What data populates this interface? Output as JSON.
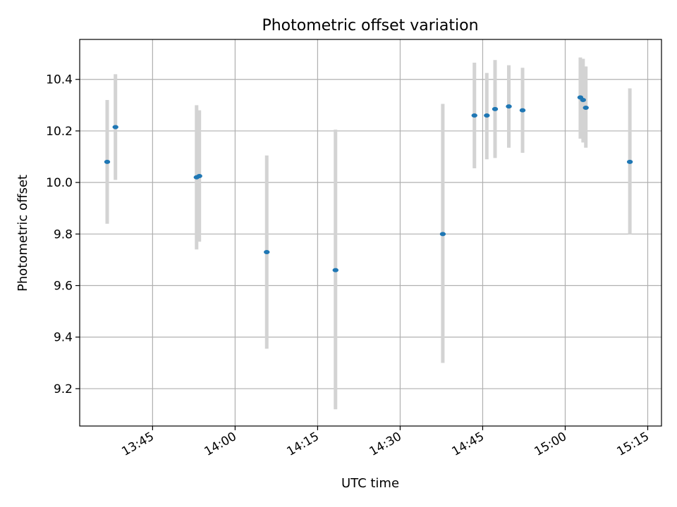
{
  "chart_data": {
    "type": "scatter",
    "title": "Photometric offset variation",
    "xlabel": "UTC time",
    "ylabel": "Photometric offset",
    "xlim": [
      "13:31:45",
      "15:17:30"
    ],
    "ylim": [
      9.055,
      10.555
    ],
    "x_ticks": [
      "13:45",
      "14:00",
      "14:15",
      "14:30",
      "14:45",
      "15:00",
      "15:15"
    ],
    "y_ticks": [
      "9.2",
      "9.4",
      "9.6",
      "9.8",
      "10.0",
      "10.2",
      "10.4"
    ],
    "grid": true,
    "legend": "none",
    "colors": {
      "points": "#1f77b4",
      "error_bars": "#d3d3d3",
      "grid": "#b0b0b0"
    },
    "points": [
      {
        "x": "13:36:45",
        "y": 10.08,
        "y_low": 9.84,
        "y_high": 10.32
      },
      {
        "x": "13:38:15",
        "y": 10.215,
        "y_low": 10.01,
        "y_high": 10.42
      },
      {
        "x": "13:53:00",
        "y": 10.02,
        "y_low": 9.74,
        "y_high": 10.3
      },
      {
        "x": "13:53:30",
        "y": 10.025,
        "y_low": 9.77,
        "y_high": 10.28
      },
      {
        "x": "14:05:45",
        "y": 9.73,
        "y_low": 9.355,
        "y_high": 10.105
      },
      {
        "x": "14:18:15",
        "y": 9.66,
        "y_low": 9.12,
        "y_high": 10.205
      },
      {
        "x": "14:37:45",
        "y": 9.8,
        "y_low": 9.3,
        "y_high": 10.305
      },
      {
        "x": "14:43:30",
        "y": 10.26,
        "y_low": 10.055,
        "y_high": 10.465
      },
      {
        "x": "14:45:45",
        "y": 10.26,
        "y_low": 10.09,
        "y_high": 10.425
      },
      {
        "x": "14:47:15",
        "y": 10.285,
        "y_low": 10.095,
        "y_high": 10.475
      },
      {
        "x": "14:49:45",
        "y": 10.295,
        "y_low": 10.135,
        "y_high": 10.455
      },
      {
        "x": "14:52:15",
        "y": 10.28,
        "y_low": 10.115,
        "y_high": 10.445
      },
      {
        "x": "15:02:45",
        "y": 10.33,
        "y_low": 10.17,
        "y_high": 10.485
      },
      {
        "x": "15:03:15",
        "y": 10.32,
        "y_low": 10.155,
        "y_high": 10.48
      },
      {
        "x": "15:03:45",
        "y": 10.29,
        "y_low": 10.135,
        "y_high": 10.45
      },
      {
        "x": "15:11:45",
        "y": 10.08,
        "y_low": 9.8,
        "y_high": 10.365
      }
    ]
  }
}
